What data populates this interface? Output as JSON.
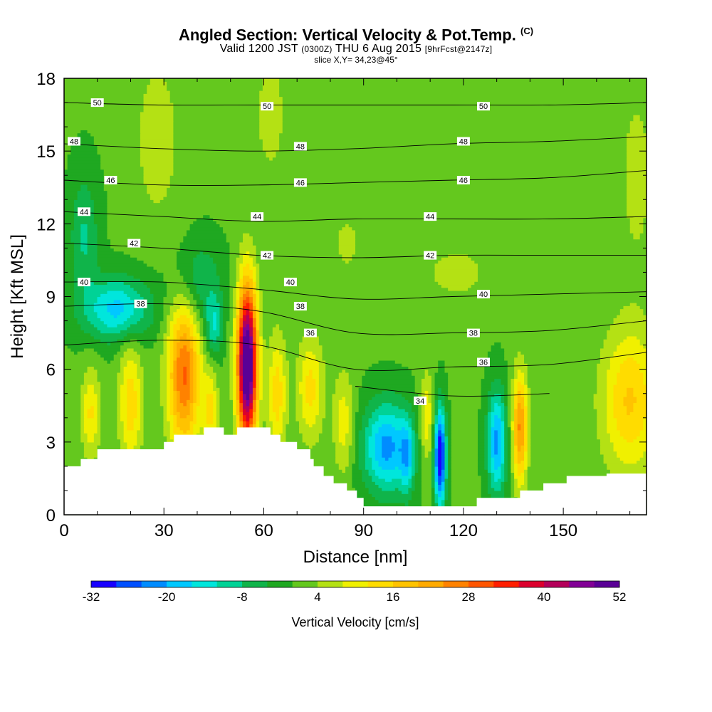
{
  "title": {
    "main": "Angled Section: Vertical Velocity & Pot.Temp.",
    "unit_tag": "(C)",
    "valid_prefix": "Valid 1200 JST",
    "valid_zulu": "(0300Z)",
    "valid_date": "THU 6 Aug 2015",
    "forecast_tag": "[9hrFcst@2147z]",
    "slice": "slice X,Y= 34,23@45°"
  },
  "chart_data": {
    "type": "heatmap",
    "xlabel": "Distance [nm]",
    "ylabel": "Height [Kft MSL]",
    "xlim": [
      0,
      175
    ],
    "ylim": [
      0,
      18
    ],
    "x_ticks": [
      0,
      30,
      60,
      90,
      120,
      150
    ],
    "y_ticks": [
      0,
      3,
      6,
      9,
      12,
      15,
      18
    ],
    "colorbar": {
      "label": "Vertical Velocity [cm/s]",
      "range": [
        -32,
        52
      ],
      "step": 4,
      "tick_values": [
        -32,
        -20,
        -8,
        4,
        16,
        28,
        40,
        52
      ],
      "colors": [
        "#1800ff",
        "#0050ff",
        "#008cff",
        "#00c8ff",
        "#00e6dc",
        "#00d296",
        "#10b44a",
        "#1fa821",
        "#64c81e",
        "#b4e114",
        "#f0f000",
        "#ffdc00",
        "#ffc300",
        "#ffaa00",
        "#ff8200",
        "#ff5500",
        "#ff1e00",
        "#dc002d",
        "#b4005a",
        "#820096",
        "#5a0096"
      ]
    },
    "terrain_kft": [
      [
        0,
        2.0
      ],
      [
        5,
        2.0
      ],
      [
        5,
        2.3
      ],
      [
        10,
        2.3
      ],
      [
        10,
        2.7
      ],
      [
        30,
        2.7
      ],
      [
        30,
        3.0
      ],
      [
        33,
        3.0
      ],
      [
        33,
        3.3
      ],
      [
        42,
        3.3
      ],
      [
        42,
        3.6
      ],
      [
        48,
        3.6
      ],
      [
        48,
        3.3
      ],
      [
        52,
        3.3
      ],
      [
        52,
        3.6
      ],
      [
        62,
        3.6
      ],
      [
        62,
        3.3
      ],
      [
        65,
        3.3
      ],
      [
        65,
        3.0
      ],
      [
        70,
        3.0
      ],
      [
        70,
        2.7
      ],
      [
        74,
        2.7
      ],
      [
        74,
        2.3
      ],
      [
        75,
        2.3
      ],
      [
        75,
        2.0
      ],
      [
        78,
        2.0
      ],
      [
        78,
        1.6
      ],
      [
        81,
        1.6
      ],
      [
        81,
        1.3
      ],
      [
        85,
        1.3
      ],
      [
        85,
        1.0
      ],
      [
        88,
        1.0
      ],
      [
        88,
        0.7
      ],
      [
        90,
        0.7
      ],
      [
        90,
        0.35
      ],
      [
        124,
        0.35
      ],
      [
        124,
        0.7
      ],
      [
        137,
        0.7
      ],
      [
        137,
        1.0
      ],
      [
        144,
        1.0
      ],
      [
        144,
        1.3
      ],
      [
        151,
        1.3
      ],
      [
        151,
        1.6
      ],
      [
        163,
        1.6
      ],
      [
        163,
        1.7
      ],
      [
        175,
        1.7
      ]
    ],
    "vv_cells": [
      {
        "x": 55,
        "y": 6.2,
        "sx": 2.1,
        "sy": 2.3,
        "amp": 58
      },
      {
        "x": 36,
        "y": 5.8,
        "sx": 3.4,
        "sy": 2.2,
        "amp": 28
      },
      {
        "x": 8,
        "y": 4.2,
        "sx": 2.0,
        "sy": 1.3,
        "amp": 12
      },
      {
        "x": 20,
        "y": 4.6,
        "sx": 2.5,
        "sy": 1.8,
        "amp": 14
      },
      {
        "x": 44,
        "y": 4.3,
        "sx": 1.6,
        "sy": 1.2,
        "amp": 12
      },
      {
        "x": 64,
        "y": 5.0,
        "sx": 2.0,
        "sy": 1.7,
        "amp": 14
      },
      {
        "x": 74,
        "y": 5.2,
        "sx": 2.8,
        "sy": 1.5,
        "amp": 13
      },
      {
        "x": 84,
        "y": 3.8,
        "sx": 2.2,
        "sy": 1.5,
        "amp": 10
      },
      {
        "x": 109,
        "y": 4.0,
        "sx": 1.4,
        "sy": 1.3,
        "amp": 11
      },
      {
        "x": 137,
        "y": 3.6,
        "sx": 1.6,
        "sy": 1.6,
        "amp": 24
      },
      {
        "x": 170,
        "y": 4.7,
        "sx": 6.0,
        "sy": 2.1,
        "amp": 16
      },
      {
        "x": 97,
        "y": 2.8,
        "sx": 5.0,
        "sy": 1.3,
        "amp": -22
      },
      {
        "x": 103,
        "y": 2.4,
        "sx": 1.5,
        "sy": 1.1,
        "amp": -12
      },
      {
        "x": 113,
        "y": 2.4,
        "sx": 1.2,
        "sy": 1.4,
        "amp": -34
      },
      {
        "x": 130,
        "y": 3.0,
        "sx": 2.0,
        "sy": 1.5,
        "amp": -22
      },
      {
        "x": 45,
        "y": 7.8,
        "sx": 1.8,
        "sy": 0.9,
        "amp": -12
      },
      {
        "x": 16,
        "y": 8.5,
        "sx": 7.0,
        "sy": 0.9,
        "amp": -18
      },
      {
        "x": 6,
        "y": 11.5,
        "sx": 3.0,
        "sy": 1.8,
        "amp": -9
      },
      {
        "x": 40,
        "y": 9.6,
        "sx": 5.0,
        "sy": 1.2,
        "amp": -9
      },
      {
        "x": 28,
        "y": 15.5,
        "sx": 5.0,
        "sy": 2.5,
        "amp": 6
      },
      {
        "x": 62,
        "y": 16.5,
        "sx": 4.0,
        "sy": 2.2,
        "amp": 5
      },
      {
        "x": 85,
        "y": 11.2,
        "sx": 5.0,
        "sy": 1.5,
        "amp": 4
      },
      {
        "x": 118,
        "y": 10.0,
        "sx": 8.0,
        "sy": 0.9,
        "amp": 5
      },
      {
        "x": 172,
        "y": 14.0,
        "sx": 4.0,
        "sy": 3.0,
        "amp": 5
      }
    ],
    "isotherms": [
      {
        "value": 50,
        "heights": [
          17.0,
          16.9,
          16.9,
          16.9,
          16.9,
          16.9,
          17.0
        ],
        "labels": [
          [
            10,
            17.0
          ],
          [
            61,
            16.85
          ],
          [
            126,
            16.85
          ]
        ]
      },
      {
        "value": 48,
        "heights": [
          15.3,
          15.1,
          15.0,
          15.1,
          15.3,
          15.4,
          15.6
        ],
        "labels": [
          [
            3,
            15.4
          ],
          [
            71,
            15.2
          ],
          [
            120,
            15.4
          ]
        ]
      },
      {
        "value": 46,
        "heights": [
          13.8,
          13.6,
          13.6,
          13.7,
          13.8,
          13.9,
          14.2
        ],
        "labels": [
          [
            14,
            13.8
          ],
          [
            71,
            13.7
          ],
          [
            120,
            13.8
          ]
        ]
      },
      {
        "value": 44,
        "heights": [
          12.5,
          12.3,
          12.1,
          12.2,
          12.2,
          12.2,
          12.3
        ],
        "labels": [
          [
            6,
            12.5
          ],
          [
            58,
            12.3
          ],
          [
            110,
            12.3
          ]
        ]
      },
      {
        "value": 42,
        "heights": [
          11.2,
          11.0,
          10.7,
          10.6,
          10.7,
          10.7,
          10.7
        ],
        "labels": [
          [
            21,
            11.2
          ],
          [
            61,
            10.7
          ],
          [
            110,
            10.7
          ]
        ]
      },
      {
        "value": 40,
        "heights": [
          9.6,
          9.6,
          9.3,
          8.9,
          9.0,
          9.1,
          9.2
        ],
        "labels": [
          [
            6,
            9.6
          ],
          [
            68,
            9.6
          ],
          [
            126,
            9.1
          ]
        ]
      },
      {
        "value": 38,
        "heights": [
          8.6,
          8.7,
          8.4,
          7.5,
          7.5,
          7.6,
          8.0
        ],
        "labels": [
          [
            23,
            8.7
          ],
          [
            71,
            8.6
          ],
          [
            123,
            7.5
          ]
        ]
      },
      {
        "value": 36,
        "heights": [
          7.0,
          7.2,
          7.0,
          6.0,
          6.1,
          6.2,
          6.7
        ],
        "labels": [
          [
            74,
            7.5
          ],
          [
            126,
            6.3
          ]
        ]
      },
      {
        "value": 34,
        "heights": [
          null,
          null,
          null,
          5.3,
          4.9,
          5.0,
          null
        ],
        "labels": [
          [
            107,
            4.7
          ]
        ]
      }
    ]
  }
}
